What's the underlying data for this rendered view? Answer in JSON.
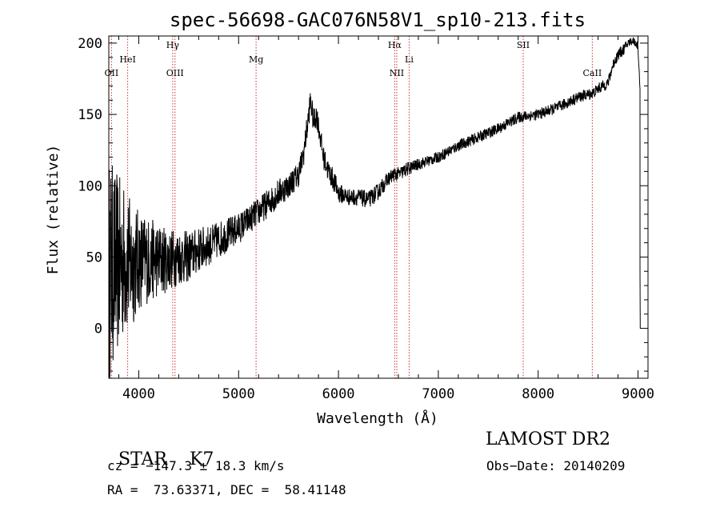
{
  "chart_data": {
    "type": "line",
    "title": "spec-56698-GAC076N58V1_sp10-213.fits",
    "xlabel": "Wavelength (Å)",
    "ylabel": "Flux (relative)",
    "xlim": [
      3700,
      9100
    ],
    "ylim": [
      -35,
      205
    ],
    "xticks": [
      4000,
      5000,
      6000,
      7000,
      8000,
      9000
    ],
    "yticks": [
      0,
      50,
      100,
      150,
      200
    ],
    "line_color": "#000000",
    "marker_color": "#cc3333",
    "spectrum": {
      "x": [
        3700,
        3750,
        3800,
        3850,
        3900,
        3950,
        4000,
        4100,
        4200,
        4300,
        4400,
        4500,
        4600,
        4700,
        4800,
        4900,
        5000,
        5100,
        5200,
        5300,
        5400,
        5500,
        5600,
        5650,
        5700,
        5720,
        5750,
        5780,
        5800,
        5850,
        5900,
        5950,
        6000,
        6100,
        6200,
        6300,
        6400,
        6500,
        6560,
        6600,
        6700,
        6800,
        7000,
        7200,
        7400,
        7600,
        7800,
        8000,
        8200,
        8400,
        8550,
        8600,
        8700,
        8750,
        8800,
        8850,
        8900,
        8950,
        9000,
        9020
      ],
      "y": [
        40,
        45,
        45,
        48,
        46,
        45,
        48,
        48,
        48,
        48,
        50,
        50,
        55,
        58,
        62,
        66,
        70,
        76,
        82,
        88,
        95,
        100,
        108,
        122,
        148,
        160,
        145,
        150,
        142,
        120,
        110,
        104,
        95,
        92,
        92,
        90,
        96,
        105,
        108,
        108,
        112,
        115,
        120,
        128,
        134,
        140,
        148,
        150,
        155,
        162,
        165,
        168,
        172,
        185,
        192,
        195,
        200,
        202,
        198,
        165
      ],
      "noise": [
        80,
        70,
        62,
        55,
        48,
        42,
        36,
        30,
        26,
        22,
        20,
        18,
        16,
        14,
        13,
        12,
        11,
        10,
        10,
        10,
        10,
        9,
        9,
        9,
        9,
        9,
        9,
        9,
        8,
        8,
        8,
        8,
        7,
        6,
        6,
        6,
        6,
        5,
        5,
        5,
        5,
        4,
        4,
        4,
        4,
        4,
        4,
        4,
        4,
        4,
        4,
        4,
        4,
        4,
        4,
        4,
        3,
        3,
        3,
        3
      ]
    },
    "lines": [
      {
        "label": "OII",
        "x": 3727,
        "row": 2
      },
      {
        "label": "HeI",
        "x": 3889,
        "row": 1
      },
      {
        "label": "Hγ",
        "x": 4340,
        "row": 0
      },
      {
        "label": "OIII",
        "x": 4363,
        "row": 2
      },
      {
        "label": "Mg",
        "x": 5175,
        "row": 1
      },
      {
        "label": "Hα",
        "x": 6563,
        "row": 0
      },
      {
        "label": "NII",
        "x": 6584,
        "row": 2
      },
      {
        "label": "Li",
        "x": 6708,
        "row": 1
      },
      {
        "label": "SII",
        "x": 7850,
        "row": 0
      },
      {
        "label": "CaII",
        "x": 8542,
        "row": 2
      }
    ]
  },
  "info": {
    "class": "STAR",
    "subclass": "K7",
    "survey": "LAMOST DR2",
    "cz": "cz = −147.3 ± 18.3 km/s",
    "obs_date": "Obs−Date: 20140209",
    "coords": "RA =  73.63371, DEC =  58.41148"
  }
}
